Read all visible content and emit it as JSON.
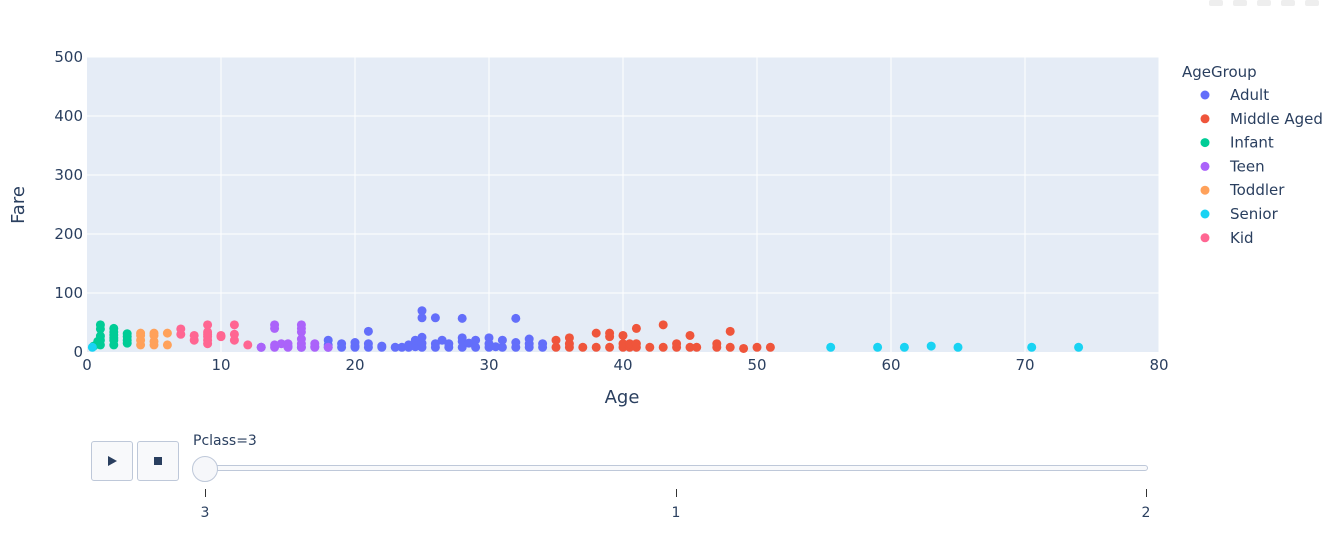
{
  "chart_data": {
    "type": "scatter",
    "xlabel": "Age",
    "ylabel": "Fare",
    "xlim": [
      0,
      80
    ],
    "ylim": [
      0,
      500
    ],
    "xticks": [
      0,
      10,
      20,
      30,
      40,
      50,
      60,
      70,
      80
    ],
    "yticks": [
      0,
      100,
      200,
      300,
      400,
      500
    ],
    "grid": true,
    "legend_title": "AgeGroup",
    "legend_position": "right",
    "series": [
      {
        "name": "Adult",
        "color": "#636efa",
        "points": [
          [
            13,
            8
          ],
          [
            15,
            9
          ],
          [
            16,
            8
          ],
          [
            17,
            9
          ],
          [
            18,
            8
          ],
          [
            18,
            12
          ],
          [
            18,
            20
          ],
          [
            19,
            8
          ],
          [
            19,
            14
          ],
          [
            20,
            8
          ],
          [
            20,
            10
          ],
          [
            20,
            16
          ],
          [
            21,
            8
          ],
          [
            21,
            14
          ],
          [
            21,
            35
          ],
          [
            22,
            8
          ],
          [
            22,
            10
          ],
          [
            23,
            8
          ],
          [
            23.5,
            8
          ],
          [
            24,
            8
          ],
          [
            24,
            12
          ],
          [
            24.5,
            9
          ],
          [
            24.5,
            20
          ],
          [
            25,
            8
          ],
          [
            25,
            15
          ],
          [
            25,
            25
          ],
          [
            25,
            58
          ],
          [
            25,
            70
          ],
          [
            26,
            8
          ],
          [
            26,
            14
          ],
          [
            26,
            58
          ],
          [
            26.5,
            20
          ],
          [
            27,
            8
          ],
          [
            27,
            14
          ],
          [
            28,
            8
          ],
          [
            28,
            18
          ],
          [
            28,
            24
          ],
          [
            28,
            57
          ],
          [
            28.5,
            15
          ],
          [
            29,
            8
          ],
          [
            29,
            20
          ],
          [
            30,
            8
          ],
          [
            30,
            14
          ],
          [
            30,
            24
          ],
          [
            30.5,
            9
          ],
          [
            31,
            8
          ],
          [
            31,
            20
          ],
          [
            32,
            8
          ],
          [
            32,
            16
          ],
          [
            32,
            57
          ],
          [
            33,
            8
          ],
          [
            33,
            14
          ],
          [
            33,
            22
          ],
          [
            34,
            8
          ],
          [
            34,
            14
          ]
        ]
      },
      {
        "name": "Middle Aged",
        "color": "#ef553b",
        "points": [
          [
            35,
            8
          ],
          [
            35,
            20
          ],
          [
            36,
            8
          ],
          [
            36,
            14
          ],
          [
            36,
            24
          ],
          [
            37,
            8
          ],
          [
            38,
            8
          ],
          [
            38,
            32
          ],
          [
            39,
            8
          ],
          [
            39,
            26
          ],
          [
            39,
            32
          ],
          [
            40,
            8
          ],
          [
            40,
            14
          ],
          [
            40,
            28
          ],
          [
            40.5,
            8
          ],
          [
            40.5,
            14
          ],
          [
            41,
            8
          ],
          [
            41,
            14
          ],
          [
            41,
            40
          ],
          [
            42,
            8
          ],
          [
            43,
            8
          ],
          [
            43,
            46
          ],
          [
            44,
            8
          ],
          [
            44,
            14
          ],
          [
            45,
            8
          ],
          [
            45,
            28
          ],
          [
            45.5,
            8
          ],
          [
            47,
            8
          ],
          [
            47,
            14
          ],
          [
            48,
            8
          ],
          [
            48,
            35
          ],
          [
            49,
            6
          ],
          [
            50,
            8
          ],
          [
            51,
            8
          ]
        ]
      },
      {
        "name": "Infant",
        "color": "#00cc96",
        "points": [
          [
            0.5,
            10
          ],
          [
            0.8,
            18
          ],
          [
            1,
            12
          ],
          [
            1,
            20
          ],
          [
            1,
            27
          ],
          [
            1,
            39
          ],
          [
            1,
            46
          ],
          [
            2,
            12
          ],
          [
            2,
            20
          ],
          [
            2,
            24
          ],
          [
            2,
            29
          ],
          [
            2,
            34
          ],
          [
            2,
            40
          ],
          [
            3,
            15
          ],
          [
            3,
            20
          ],
          [
            3,
            26
          ],
          [
            3,
            31
          ]
        ]
      },
      {
        "name": "Teen",
        "color": "#ab63fa",
        "points": [
          [
            13,
            8
          ],
          [
            14,
            8
          ],
          [
            14,
            12
          ],
          [
            14,
            40
          ],
          [
            14,
            46
          ],
          [
            14.5,
            14
          ],
          [
            15,
            8
          ],
          [
            15,
            14
          ],
          [
            16,
            8
          ],
          [
            16,
            14
          ],
          [
            16,
            22
          ],
          [
            16,
            34
          ],
          [
            16,
            40
          ],
          [
            16,
            46
          ],
          [
            17,
            8
          ],
          [
            17,
            14
          ],
          [
            18,
            8
          ]
        ]
      },
      {
        "name": "Toddler",
        "color": "#ffa15a",
        "points": [
          [
            4,
            12
          ],
          [
            4,
            20
          ],
          [
            4,
            28
          ],
          [
            4,
            32
          ],
          [
            5,
            12
          ],
          [
            5,
            18
          ],
          [
            5,
            28
          ],
          [
            5,
            32
          ],
          [
            6,
            12
          ],
          [
            6,
            32
          ]
        ]
      },
      {
        "name": "Senior",
        "color": "#19d3f3",
        "points": [
          [
            0.4,
            8
          ],
          [
            55.5,
            8
          ],
          [
            59,
            8
          ],
          [
            61,
            8
          ],
          [
            63,
            10
          ],
          [
            65,
            8
          ],
          [
            70.5,
            8
          ],
          [
            74,
            8
          ]
        ]
      },
      {
        "name": "Kid",
        "color": "#ff6692",
        "points": [
          [
            7,
            30
          ],
          [
            7,
            39
          ],
          [
            8,
            20
          ],
          [
            8,
            28
          ],
          [
            9,
            14
          ],
          [
            9,
            20
          ],
          [
            9,
            26
          ],
          [
            9,
            30
          ],
          [
            9,
            34
          ],
          [
            9,
            46
          ],
          [
            10,
            26
          ],
          [
            10,
            28
          ],
          [
            11,
            20
          ],
          [
            11,
            30
          ],
          [
            11,
            46
          ],
          [
            12,
            12
          ]
        ]
      }
    ]
  },
  "slider": {
    "current_label": "Pclass=3",
    "ticks": [
      "3",
      "1",
      "2"
    ]
  },
  "controls": {
    "play_icon": "play-icon",
    "stop_icon": "stop-icon"
  }
}
